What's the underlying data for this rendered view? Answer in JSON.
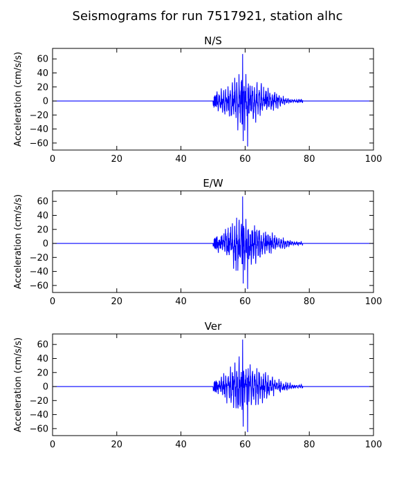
{
  "figure": {
    "title": "Seismograms for run 7517921, station alhc",
    "line_color": "#0000ff"
  },
  "chart_data": [
    {
      "type": "line",
      "title": "N/S",
      "xlabel": "",
      "ylabel": "Acceleration (cm/s/s)",
      "xlim": [
        0,
        100
      ],
      "ylim": [
        -70,
        75
      ],
      "xticks": [
        0,
        20,
        40,
        60,
        80,
        100
      ],
      "yticks": [
        -60,
        -40,
        -20,
        0,
        20,
        40,
        60
      ],
      "grid": false,
      "signal": {
        "onset": 50,
        "end": 78,
        "peak_time": 59.2,
        "peak_value": 67,
        "min_value": -65,
        "seed": 11
      }
    },
    {
      "type": "line",
      "title": "E/W",
      "xlabel": "",
      "ylabel": "Acceleration (cm/s/s)",
      "xlim": [
        0,
        100
      ],
      "ylim": [
        -70,
        75
      ],
      "xticks": [
        0,
        20,
        40,
        60,
        80,
        100
      ],
      "yticks": [
        -60,
        -40,
        -20,
        0,
        20,
        40,
        60
      ],
      "grid": false,
      "signal": {
        "onset": 50,
        "end": 78,
        "peak_time": 59.2,
        "peak_value": 67,
        "min_value": -65,
        "seed": 23
      }
    },
    {
      "type": "line",
      "title": "Ver",
      "xlabel": "",
      "ylabel": "Acceleration (cm/s/s)",
      "xlim": [
        0,
        100
      ],
      "ylim": [
        -70,
        75
      ],
      "xticks": [
        0,
        20,
        40,
        60,
        80,
        100
      ],
      "yticks": [
        -60,
        -40,
        -20,
        0,
        20,
        40,
        60
      ],
      "grid": false,
      "signal": {
        "onset": 50,
        "end": 78,
        "peak_time": 59.2,
        "peak_value": 67,
        "min_value": -65,
        "seed": 37
      }
    }
  ]
}
